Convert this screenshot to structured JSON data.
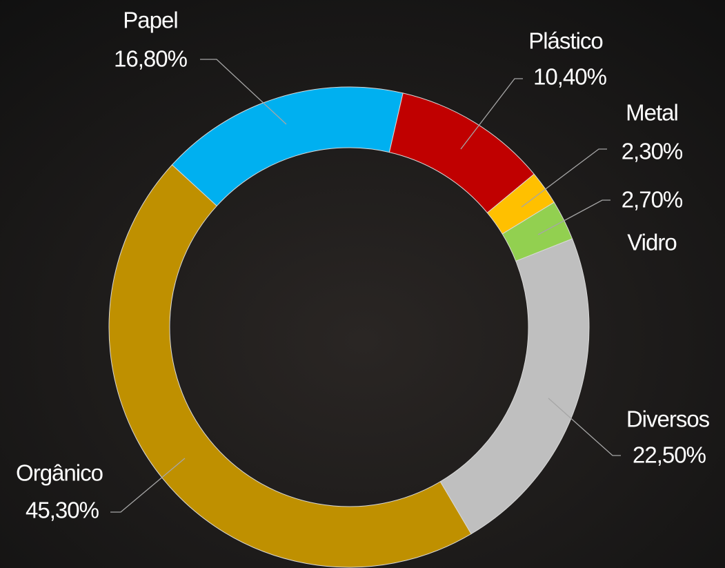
{
  "chart_data": {
    "type": "pie",
    "categories": [
      "Papel",
      "Plástico",
      "Metal",
      "Vidro",
      "Diversos",
      "Orgânico"
    ],
    "values": [
      16.8,
      10.4,
      2.3,
      2.7,
      22.5,
      45.3
    ],
    "value_labels": [
      "16,80%",
      "10,40%",
      "2,30%",
      "2,70%",
      "22,50%",
      "45,30%"
    ],
    "colors": [
      "#00b0f0",
      "#c00000",
      "#ffc000",
      "#92d050",
      "#bfbfbf",
      "#bf9000"
    ]
  }
}
